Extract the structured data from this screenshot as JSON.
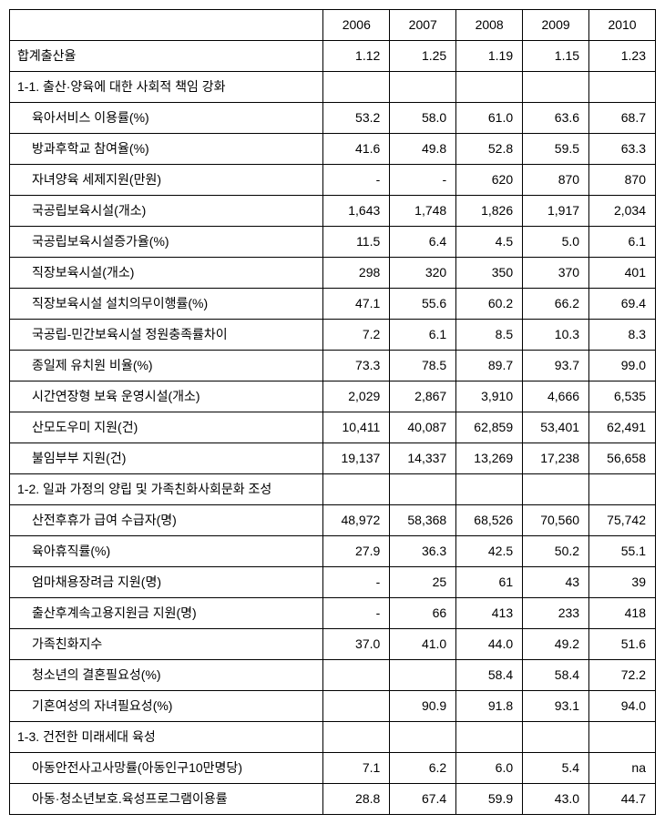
{
  "headers": {
    "empty": "",
    "years": [
      "2006",
      "2007",
      "2008",
      "2009",
      "2010"
    ]
  },
  "rows": [
    {
      "label": "합계출산율",
      "indent": false,
      "section": false,
      "vals": [
        "1.12",
        "1.25",
        "1.19",
        "1.15",
        "1.23"
      ],
      "align": "right"
    },
    {
      "label": "1-1. 출산·양육에 대한 사회적 책임 강화",
      "indent": false,
      "section": true,
      "vals": [
        "",
        "",
        "",
        "",
        ""
      ],
      "align": "right"
    },
    {
      "label": "육아서비스 이용률(%)",
      "indent": true,
      "section": false,
      "vals": [
        "53.2",
        "58.0",
        "61.0",
        "63.6",
        "68.7"
      ],
      "align": "right"
    },
    {
      "label": "방과후학교 참여율(%)",
      "indent": true,
      "section": false,
      "vals": [
        "41.6",
        "49.8",
        "52.8",
        "59.5",
        "63.3"
      ],
      "align": "right"
    },
    {
      "label": "자녀양육 세제지원(만원)",
      "indent": true,
      "section": false,
      "vals": [
        "-",
        "-",
        "620",
        "870",
        "870"
      ],
      "align": "right"
    },
    {
      "label": "국공립보육시설(개소)",
      "indent": true,
      "section": false,
      "vals": [
        "1,643",
        "1,748",
        "1,826",
        "1,917",
        "2,034"
      ],
      "align": "right"
    },
    {
      "label": "국공립보육시설증가율(%)",
      "indent": true,
      "section": false,
      "vals": [
        "11.5",
        "6.4",
        "4.5",
        "5.0",
        "6.1"
      ],
      "align": "right"
    },
    {
      "label": "직장보육시설(개소)",
      "indent": true,
      "section": false,
      "vals": [
        "298",
        "320",
        "350",
        "370",
        "401"
      ],
      "align": "right"
    },
    {
      "label": "직장보육시설 설치의무이행률(%)",
      "indent": true,
      "section": false,
      "vals": [
        "47.1",
        "55.6",
        "60.2",
        "66.2",
        "69.4"
      ],
      "align": "right"
    },
    {
      "label": "국공립-민간보육시설 정원충족률차이",
      "indent": true,
      "section": false,
      "vals": [
        "7.2",
        "6.1",
        "8.5",
        "10.3",
        "8.3"
      ],
      "align": "right"
    },
    {
      "label": "종일제 유치원 비율(%)",
      "indent": true,
      "section": false,
      "vals": [
        "73.3",
        "78.5",
        "89.7",
        "93.7",
        "99.0"
      ],
      "align": "right"
    },
    {
      "label": "시간연장형 보육 운영시설(개소)",
      "indent": true,
      "section": false,
      "vals": [
        "2,029",
        "2,867",
        "3,910",
        "4,666",
        "6,535"
      ],
      "align": "right"
    },
    {
      "label": "산모도우미 지원(건)",
      "indent": true,
      "section": false,
      "vals": [
        "10,411",
        "40,087",
        "62,859",
        "53,401",
        "62,491"
      ],
      "align": "right"
    },
    {
      "label": "불임부부 지원(건)",
      "indent": true,
      "section": false,
      "vals": [
        "19,137",
        "14,337",
        "13,269",
        "17,238",
        "56,658"
      ],
      "align": "right"
    },
    {
      "label": "1-2. 일과 가정의 양립 및 가족친화사회문화 조성",
      "indent": false,
      "section": true,
      "vals": [
        "",
        "",
        "",
        "",
        ""
      ],
      "align": "right"
    },
    {
      "label": "산전후휴가 급여 수급자(명)",
      "indent": true,
      "section": false,
      "vals": [
        "48,972",
        "58,368",
        "68,526",
        "70,560",
        "75,742"
      ],
      "align": "right"
    },
    {
      "label": "육아휴직률(%)",
      "indent": true,
      "section": false,
      "vals": [
        "27.9",
        "36.3",
        "42.5",
        "50.2",
        "55.1"
      ],
      "align": "right"
    },
    {
      "label": "엄마채용장려금 지원(명)",
      "indent": true,
      "section": false,
      "vals": [
        "-",
        "25",
        "61",
        "43",
        "39"
      ],
      "align": "right"
    },
    {
      "label": "출산후계속고용지원금 지원(명)",
      "indent": true,
      "section": false,
      "vals": [
        "-",
        "66",
        "413",
        "233",
        "418"
      ],
      "align": "right"
    },
    {
      "label": "가족친화지수",
      "indent": true,
      "section": false,
      "vals": [
        "37.0",
        "41.0",
        "44.0",
        "49.2",
        "51.6"
      ],
      "align": "right"
    },
    {
      "label": "청소년의 결혼필요성(%)",
      "indent": true,
      "section": false,
      "vals": [
        "",
        "",
        "58.4",
        "58.4",
        "72.2"
      ],
      "align": "right"
    },
    {
      "label": "기혼여성의 자녀필요성(%)",
      "indent": true,
      "section": false,
      "vals": [
        "",
        "90.9",
        "91.8",
        "93.1",
        "94.0"
      ],
      "align": "right"
    },
    {
      "label": "1-3. 건전한 미래세대 육성",
      "indent": false,
      "section": true,
      "vals": [
        "",
        "",
        "",
        "",
        ""
      ],
      "align": "right"
    },
    {
      "label": "아동안전사고사망률(아동인구10만명당)",
      "indent": true,
      "section": false,
      "vals": [
        "7.1",
        "6.2",
        "6.0",
        "5.4",
        "na"
      ],
      "align": "right"
    },
    {
      "label": "아동·청소년보호.육성프로그램이용률",
      "indent": true,
      "section": false,
      "vals": [
        "28.8",
        "67.4",
        "59.9",
        "43.0",
        "44.7"
      ],
      "align": "right"
    }
  ]
}
